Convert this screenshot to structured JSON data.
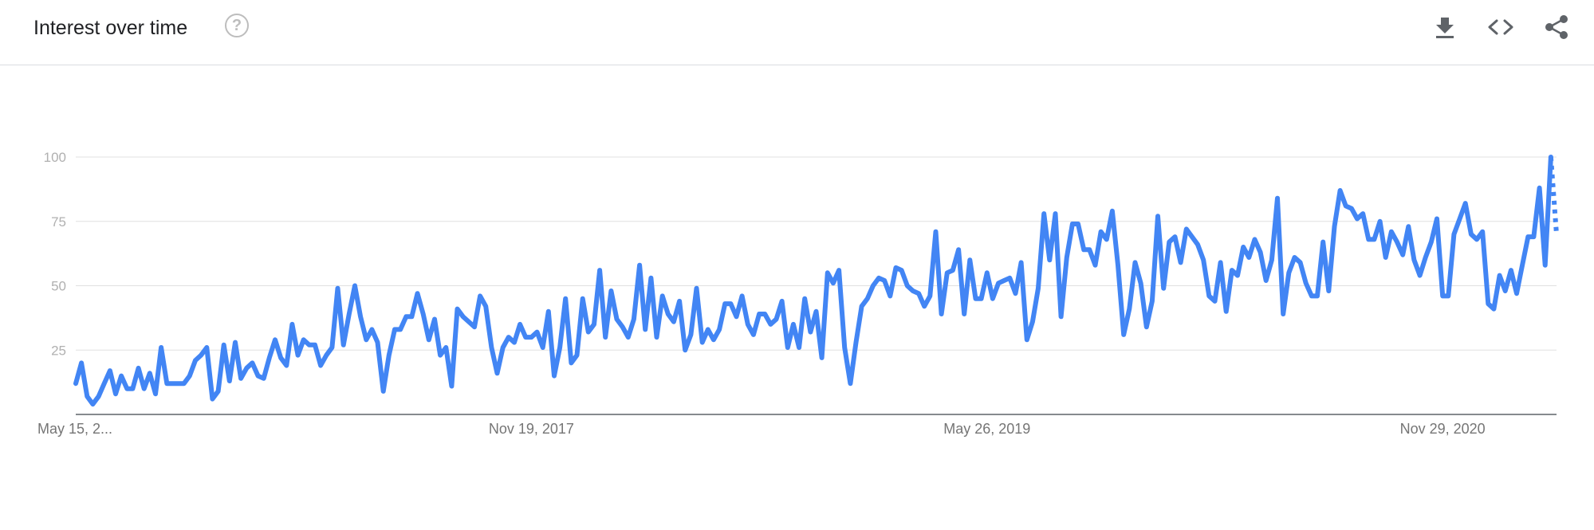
{
  "header": {
    "title": "Interest over time",
    "help_icon": "help-circle-icon",
    "actions": [
      {
        "name": "download-button",
        "icon": "download-icon"
      },
      {
        "name": "embed-button",
        "icon": "code-icon"
      },
      {
        "name": "share-button",
        "icon": "share-icon"
      }
    ]
  },
  "colors": {
    "series": "#4285f4",
    "grid": "#e0e0e0",
    "axis": "#5f6368"
  },
  "chart_data": {
    "type": "line",
    "title": "",
    "xlabel": "",
    "ylabel": "",
    "ylim": [
      0,
      100
    ],
    "yticks": [
      25,
      50,
      75,
      100
    ],
    "xtick_labels": [
      "May 15, 2...",
      "Nov 19, 2017",
      "May 26, 2019",
      "Nov 29, 2020"
    ],
    "x_start": "May 15, 2016",
    "x_interval": "weekly",
    "partial_last_points": 2,
    "grid": true,
    "series": [
      {
        "values": [
          12,
          20,
          7,
          4,
          7,
          12,
          17,
          8,
          15,
          10,
          10,
          18,
          10,
          16,
          8,
          26,
          12,
          12,
          12,
          12,
          15,
          21,
          23,
          26,
          6,
          9,
          27,
          13,
          28,
          14,
          18,
          20,
          15,
          14,
          22,
          29,
          22,
          19,
          35,
          23,
          29,
          27,
          27,
          19,
          23,
          26,
          49,
          27,
          39,
          50,
          38,
          29,
          33,
          28,
          9,
          23,
          33,
          33,
          38,
          38,
          47,
          39,
          29,
          37,
          23,
          26,
          11,
          41,
          38,
          36,
          34,
          46,
          42,
          26,
          16,
          26,
          30,
          28,
          35,
          30,
          30,
          32,
          26,
          40,
          15,
          26,
          45,
          20,
          23,
          45,
          32,
          35,
          56,
          30,
          48,
          37,
          34,
          30,
          37,
          58,
          33,
          53,
          30,
          46,
          39,
          36,
          44,
          25,
          31,
          49,
          28,
          33,
          29,
          33,
          43,
          43,
          38,
          46,
          35,
          31,
          39,
          39,
          35,
          37,
          44,
          26,
          35,
          26,
          45,
          32,
          40,
          22,
          55,
          51,
          56,
          26,
          12,
          28,
          42,
          45,
          50,
          53,
          52,
          46,
          57,
          56,
          50,
          48,
          47,
          42,
          46,
          71,
          39,
          55,
          56,
          64,
          39,
          60,
          45,
          45,
          55,
          45,
          51,
          52,
          53,
          47,
          59,
          29,
          36,
          49,
          78,
          60,
          78,
          38,
          61,
          74,
          74,
          64,
          64,
          58,
          71,
          68,
          79,
          58,
          31,
          41,
          59,
          51,
          34,
          44,
          77,
          49,
          67,
          69,
          59,
          72,
          69,
          66,
          60,
          46,
          44,
          59,
          40,
          56,
          54,
          65,
          61,
          68,
          63,
          52,
          60,
          84,
          39,
          55,
          61,
          59,
          51,
          46,
          46,
          67,
          48,
          73,
          87,
          81,
          80,
          76,
          78,
          68,
          68,
          75,
          61,
          71,
          67,
          62,
          73,
          60,
          54,
          61,
          67,
          76,
          46,
          46,
          70,
          76,
          82,
          70,
          68,
          71,
          43,
          41,
          54,
          48,
          56,
          47,
          58,
          69,
          69,
          88,
          58,
          100,
          70
        ]
      }
    ]
  }
}
